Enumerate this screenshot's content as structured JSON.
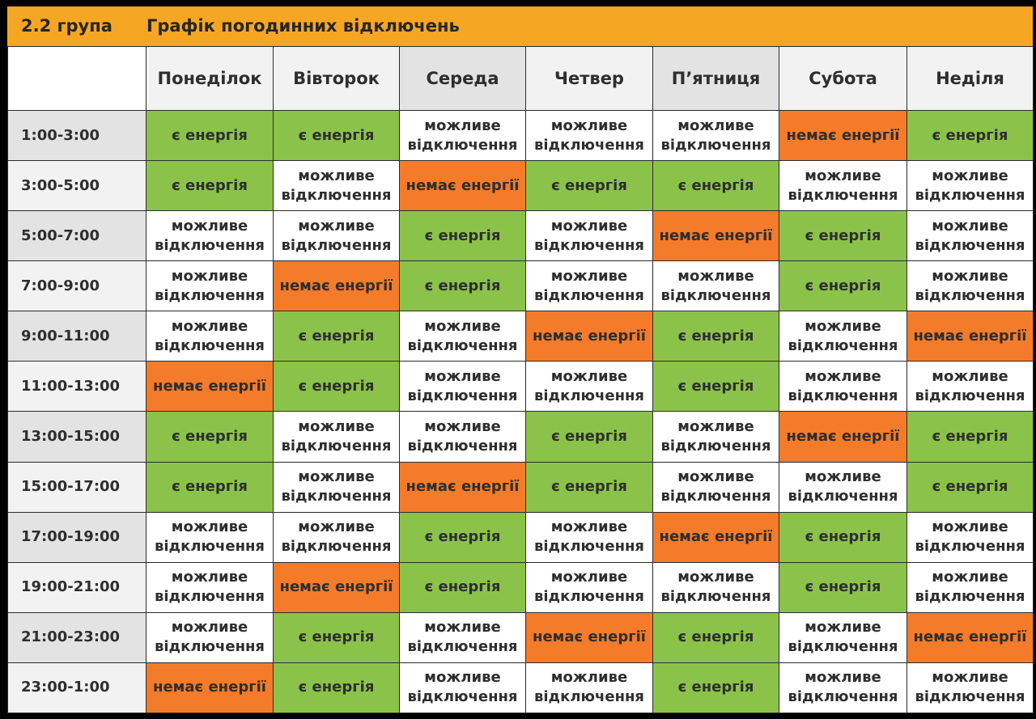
{
  "header": {
    "group": "2.2 група",
    "title": "Графік погодинних відключень"
  },
  "colors": {
    "header_bg": "#f5a623",
    "power_on": "#8bc34a",
    "power_off": "#f47b2a",
    "possible_outage": "#ffffff"
  },
  "days": [
    "Понеділок",
    "Вівторок",
    "Середа",
    "Четвер",
    "П’ятниця",
    "Субота",
    "Неділя"
  ],
  "statuses": {
    "on": "є енергія",
    "off": "немає енергії",
    "maybe": "можливе відключення"
  },
  "rows": [
    {
      "time": "1:00-3:00",
      "cells": [
        "є енергія",
        "є енергія",
        "можливе відключення",
        "можливе відключення",
        "можливе відключення",
        "немає енергії",
        "є енергія"
      ]
    },
    {
      "time": "3:00-5:00",
      "cells": [
        "є енергія",
        "можливе відключення",
        "немає енергії",
        "є енергія",
        "є енергія",
        "можливе відключення",
        "можливе відключення"
      ]
    },
    {
      "time": "5:00-7:00",
      "cells": [
        "можливе відключення",
        "можливе відключення",
        "є енергія",
        "можливе відключення",
        "немає енергії",
        "є енергія",
        "можливе відключення"
      ]
    },
    {
      "time": "7:00-9:00",
      "cells": [
        "можливе відключення",
        "немає енергії",
        "є енергія",
        "можливе відключення",
        "можливе відключення",
        "є енергія",
        "можливе відключення"
      ]
    },
    {
      "time": "9:00-11:00",
      "cells": [
        "можливе відключення",
        "є енергія",
        "можливе відключення",
        "немає енергії",
        "є енергія",
        "можливе відключення",
        "немає енергії"
      ]
    },
    {
      "time": "11:00-13:00",
      "cells": [
        "немає енергії",
        "є енергія",
        "можливе відключення",
        "можливе відключення",
        "є енергія",
        "можливе відключення",
        "можливе відключення"
      ]
    },
    {
      "time": "13:00-15:00",
      "cells": [
        "є енергія",
        "можливе відключення",
        "можливе відключення",
        "є енергія",
        "можливе відключення",
        "немає енергії",
        "є енергія"
      ]
    },
    {
      "time": "15:00-17:00",
      "cells": [
        "є енергія",
        "можливе відключення",
        "немає енергії",
        "є енергія",
        "можливе відключення",
        "можливе відключення",
        "є енергія"
      ]
    },
    {
      "time": "17:00-19:00",
      "cells": [
        "можливе відключення",
        "можливе відключення",
        "є енергія",
        "можливе відключення",
        "немає енергії",
        "є енергія",
        "можливе відключення"
      ]
    },
    {
      "time": "19:00-21:00",
      "cells": [
        "можливе відключення",
        "немає енергії",
        "є енергія",
        "можливе відключення",
        "можливе відключення",
        "є енергія",
        "можливе відключення"
      ]
    },
    {
      "time": "21:00-23:00",
      "cells": [
        "можливе відключення",
        "є енергія",
        "можливе відключення",
        "немає енергії",
        "є енергія",
        "можливе відключення",
        "немає енергії"
      ]
    },
    {
      "time": "23:00-1:00",
      "cells": [
        "немає енергії",
        "є енергія",
        "можливе відключення",
        "можливе відключення",
        "є енергія",
        "можливе відключення",
        "можливе відключення"
      ]
    }
  ]
}
